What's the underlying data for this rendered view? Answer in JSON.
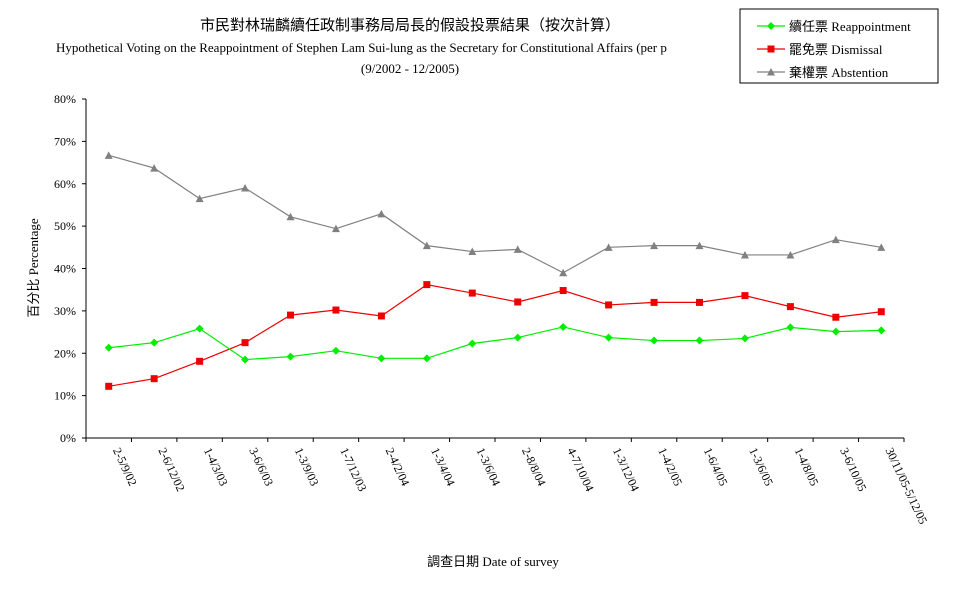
{
  "chart_data": {
    "type": "line",
    "title": "市民對林瑞麟續任政制事務局局長的假設投票結果（按次計算）",
    "subtitle": "Hypothetical Voting on the Reappointment of Stephen Lam Sui-lung as the Secretary for Constitutional Affairs (per p",
    "period": "(9/2002 - 12/2005)",
    "xlabel": "調查日期 Date of survey",
    "ylabel": "百分比 Percentage",
    "ylim": [
      0,
      80
    ],
    "yticks": [
      "0%",
      "10%",
      "20%",
      "30%",
      "40%",
      "50%",
      "60%",
      "70%",
      "80%"
    ],
    "grid": false,
    "legend_position": "top-right",
    "categories": [
      "2-5/9/02",
      "2-6/12/02",
      "1-4/3/03",
      "3-6/6/03",
      "1-3/9/03",
      "1-7/12/03",
      "2-4/2/04",
      "1-3/4/04",
      "1-3/6/04",
      "2-8/8/04",
      "4-7/10/04",
      "1-3/12/04",
      "1-4/2/05",
      "1-6/4/05",
      "1-3/6/05",
      "1-4/8/05",
      "3-6/10/05",
      "30/11/05-5/12/05"
    ],
    "series": [
      {
        "name": "續任票 Reappointment",
        "color": "#00ee00",
        "marker": "diamond",
        "values": [
          21.3,
          22.5,
          25.8,
          18.5,
          19.2,
          20.6,
          18.8,
          18.8,
          22.3,
          23.7,
          26.2,
          23.7,
          23.0,
          23.0,
          23.5,
          26.1,
          25.1,
          25.4
        ]
      },
      {
        "name": "罷免票 Dismissal",
        "color": "#ee0000",
        "marker": "square",
        "values": [
          12.2,
          14.0,
          18.1,
          22.5,
          29.0,
          30.2,
          28.8,
          36.2,
          34.2,
          32.1,
          34.8,
          31.4,
          32.0,
          32.0,
          33.6,
          31.0,
          28.5,
          29.8
        ]
      },
      {
        "name": "棄權票 Abstention",
        "color": "#808080",
        "marker": "triangle",
        "values": [
          66.7,
          63.7,
          56.5,
          59.0,
          52.2,
          49.4,
          52.9,
          45.4,
          44.0,
          44.5,
          39.0,
          45.0,
          45.4,
          45.4,
          43.2,
          43.2,
          46.8,
          45.0
        ]
      }
    ]
  }
}
